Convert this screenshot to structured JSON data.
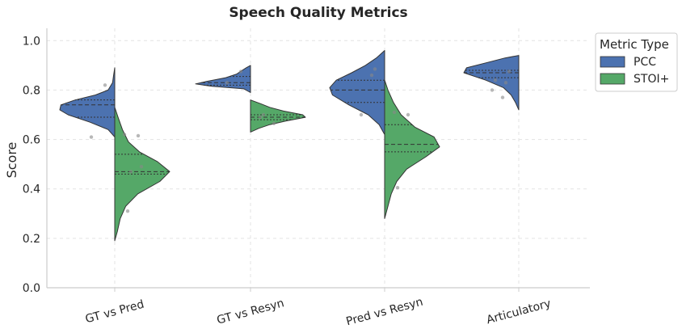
{
  "chart_data": {
    "type": "violin",
    "title": "Speech Quality Metrics",
    "xlabel": "",
    "ylabel": "Score",
    "ylim": [
      0.0,
      1.05
    ],
    "yticks": [
      "0.0",
      "0.2",
      "0.4",
      "0.6",
      "0.8",
      "1.0"
    ],
    "grid": true,
    "legend_position": "top-right",
    "legend_title": "Metric Type",
    "categories": [
      "GT vs Pred",
      "GT vs Resyn",
      "Pred vs Resyn",
      "Articulatory"
    ],
    "series": [
      {
        "name": "PCC",
        "color": "#4c72b0",
        "side": "left",
        "violins": [
          {
            "range": [
              0.61,
              0.89
            ],
            "q1": 0.69,
            "median": 0.74,
            "q3": 0.76,
            "profile": [
              [
                0.61,
                0.0
              ],
              [
                0.64,
                0.12
              ],
              [
                0.67,
                0.45
              ],
              [
                0.7,
                0.85
              ],
              [
                0.72,
                1.0
              ],
              [
                0.74,
                0.98
              ],
              [
                0.76,
                0.72
              ],
              [
                0.78,
                0.35
              ],
              [
                0.8,
                0.12
              ],
              [
                0.83,
                0.04
              ],
              [
                0.86,
                0.02
              ],
              [
                0.89,
                0.0
              ]
            ],
            "points": [
              0.82,
              0.61
            ]
          },
          {
            "range": [
              0.79,
              0.9
            ],
            "q1": 0.82,
            "median": 0.83,
            "q3": 0.855,
            "profile": [
              [
                0.79,
                0.0
              ],
              [
                0.805,
                0.12
              ],
              [
                0.815,
                0.7
              ],
              [
                0.825,
                1.0
              ],
              [
                0.835,
                0.8
              ],
              [
                0.85,
                0.45
              ],
              [
                0.865,
                0.25
              ],
              [
                0.88,
                0.15
              ],
              [
                0.89,
                0.08
              ],
              [
                0.9,
                0.0
              ]
            ],
            "points": [
              0.875,
              0.83
            ]
          },
          {
            "range": [
              0.62,
              0.96
            ],
            "q1": 0.75,
            "median": 0.8,
            "q3": 0.84,
            "profile": [
              [
                0.62,
                0.0
              ],
              [
                0.66,
                0.1
              ],
              [
                0.7,
                0.3
              ],
              [
                0.74,
                0.65
              ],
              [
                0.78,
                0.95
              ],
              [
                0.81,
                1.0
              ],
              [
                0.84,
                0.88
              ],
              [
                0.87,
                0.6
              ],
              [
                0.9,
                0.35
              ],
              [
                0.93,
                0.15
              ],
              [
                0.96,
                0.0
              ]
            ],
            "points": [
              0.885,
              0.7,
              0.86
            ]
          },
          {
            "range": [
              0.72,
              0.94
            ],
            "q1": 0.85,
            "median": 0.87,
            "q3": 0.88,
            "profile": [
              [
                0.72,
                0.0
              ],
              [
                0.75,
                0.06
              ],
              [
                0.78,
                0.14
              ],
              [
                0.81,
                0.28
              ],
              [
                0.84,
                0.6
              ],
              [
                0.87,
                1.0
              ],
              [
                0.89,
                0.95
              ],
              [
                0.91,
                0.6
              ],
              [
                0.93,
                0.25
              ],
              [
                0.94,
                0.0
              ]
            ],
            "points": [
              0.875,
              0.84,
              0.83,
              0.8,
              0.77
            ]
          }
        ]
      },
      {
        "name": "STOI+",
        "color": "#55a868",
        "side": "right",
        "violins": [
          {
            "range": [
              0.19,
              0.73
            ],
            "q1": 0.46,
            "median": 0.47,
            "q3": 0.54,
            "profile": [
              [
                0.19,
                0.0
              ],
              [
                0.23,
                0.05
              ],
              [
                0.28,
                0.1
              ],
              [
                0.33,
                0.2
              ],
              [
                0.38,
                0.42
              ],
              [
                0.43,
                0.82
              ],
              [
                0.47,
                1.0
              ],
              [
                0.51,
                0.78
              ],
              [
                0.55,
                0.45
              ],
              [
                0.59,
                0.25
              ],
              [
                0.64,
                0.14
              ],
              [
                0.69,
                0.06
              ],
              [
                0.73,
                0.0
              ]
            ],
            "points": [
              0.62,
              0.615,
              0.31,
              0.49,
              0.47
            ]
          },
          {
            "range": [
              0.63,
              0.76
            ],
            "q1": 0.68,
            "median": 0.69,
            "q3": 0.7,
            "profile": [
              [
                0.63,
                0.0
              ],
              [
                0.645,
                0.15
              ],
              [
                0.66,
                0.35
              ],
              [
                0.675,
                0.65
              ],
              [
                0.69,
                1.0
              ],
              [
                0.7,
                0.95
              ],
              [
                0.715,
                0.6
              ],
              [
                0.73,
                0.35
              ],
              [
                0.745,
                0.18
              ],
              [
                0.76,
                0.0
              ]
            ],
            "points": [
              0.69,
              0.665,
              0.7
            ]
          },
          {
            "range": [
              0.28,
              0.84
            ],
            "q1": 0.55,
            "median": 0.58,
            "q3": 0.66,
            "profile": [
              [
                0.28,
                0.0
              ],
              [
                0.33,
                0.06
              ],
              [
                0.38,
                0.12
              ],
              [
                0.43,
                0.22
              ],
              [
                0.48,
                0.4
              ],
              [
                0.53,
                0.75
              ],
              [
                0.57,
                1.0
              ],
              [
                0.61,
                0.9
              ],
              [
                0.65,
                0.55
              ],
              [
                0.7,
                0.3
              ],
              [
                0.75,
                0.16
              ],
              [
                0.8,
                0.06
              ],
              [
                0.84,
                0.0
              ]
            ],
            "points": [
              0.71,
              0.7,
              0.405
            ]
          }
        ]
      }
    ]
  }
}
